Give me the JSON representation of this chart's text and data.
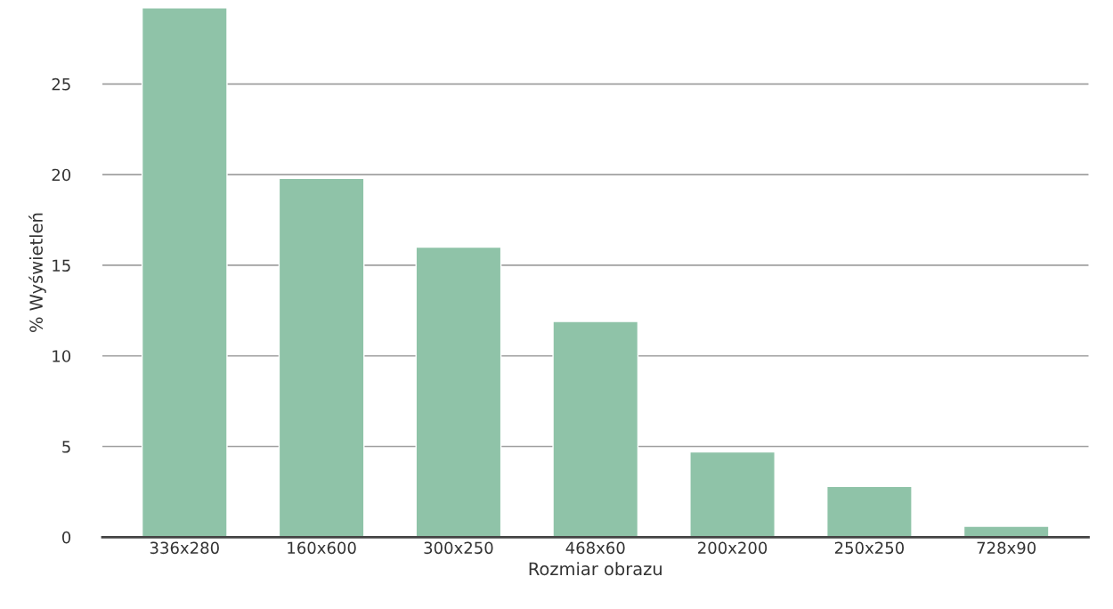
{
  "chart_data": {
    "type": "bar",
    "xlabel": "Rozmiar obrazu",
    "ylabel": "% Wyświetleń",
    "categories": [
      "336x280",
      "160x600",
      "300x250",
      "468x60",
      "200x200",
      "250x250",
      "728x90"
    ],
    "values": [
      29.2,
      19.8,
      16.0,
      11.9,
      4.7,
      2.8,
      0.6
    ],
    "color": "#8fc3a8",
    "ylim": [
      0,
      29.2
    ],
    "yticks": [
      0,
      5,
      10,
      15,
      20,
      25
    ],
    "grid": "y",
    "legend": false
  }
}
